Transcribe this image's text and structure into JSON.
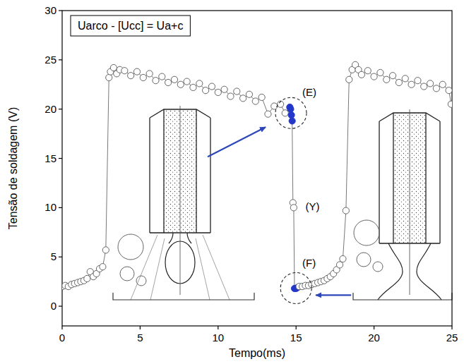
{
  "chart_data": {
    "type": "line",
    "title": "Uarco - [Ucc] = Ua+c",
    "x_label": "Tempo(ms)",
    "y_label": "Tensão de soldagem (V)",
    "xlim": [
      0,
      25
    ],
    "ylim": [
      -2,
      30
    ],
    "xticks": [
      0,
      5,
      10,
      15,
      20,
      25
    ],
    "yticks": [
      0,
      5,
      10,
      15,
      20,
      25,
      30
    ],
    "grid": false,
    "series": [
      {
        "color": "#555555",
        "marker": "circle",
        "line_style": "solid",
        "x": [
          0,
          0.2,
          0.4,
          0.6,
          0.8,
          1.0,
          1.2,
          1.4,
          1.6,
          1.8,
          2.0,
          2.2,
          2.4,
          2.6,
          2.8,
          3.0,
          3.1,
          3.3,
          3.5,
          3.7,
          4.0,
          4.4,
          4.8,
          5.2,
          5.6,
          6.0,
          6.4,
          6.8,
          7.2,
          7.6,
          8.0,
          8.4,
          8.8,
          9.2,
          9.6,
          10.0,
          10.4,
          10.8,
          11.2,
          11.6,
          12.0,
          12.4,
          12.8,
          13.2,
          13.6,
          14.0,
          14.3,
          14.6,
          14.65,
          14.7,
          14.75,
          14.8,
          14.85,
          14.9,
          15.0,
          15.1,
          15.2,
          15.4,
          15.6,
          15.8,
          16.0,
          16.2,
          16.4,
          16.6,
          16.8,
          17.0,
          17.2,
          17.4,
          17.6,
          17.8,
          18.0,
          18.2,
          18.4,
          18.6,
          18.8,
          19.0,
          19.2,
          19.6,
          20.0,
          20.4,
          20.8,
          21.2,
          21.6,
          22.0,
          22.4,
          22.8,
          23.2,
          23.6,
          24.0,
          24.4,
          24.8,
          24.95
        ],
        "values": [
          2.0,
          2.1,
          2.0,
          2.2,
          2.3,
          2.4,
          2.5,
          2.6,
          2.8,
          3.5,
          3.0,
          3.3,
          3.8,
          4.0,
          5.7,
          23.2,
          23.8,
          24.2,
          23.6,
          24.0,
          23.9,
          23.4,
          23.8,
          23.2,
          23.6,
          22.9,
          23.3,
          22.7,
          23.0,
          22.5,
          22.8,
          22.2,
          22.6,
          21.9,
          22.3,
          21.7,
          22.0,
          21.3,
          21.8,
          21.1,
          21.5,
          20.8,
          21.2,
          19.5,
          20.3,
          20.5,
          19.6,
          20.2,
          20.0,
          19.4,
          18.8,
          10.5,
          10.0,
          1.8,
          1.8,
          1.9,
          2.0,
          2.0,
          2.1,
          2.1,
          2.2,
          2.3,
          2.4,
          2.5,
          2.6,
          2.8,
          3.0,
          3.3,
          3.7,
          4.2,
          4.8,
          9.7,
          23.0,
          24.0,
          24.5,
          24.0,
          23.5,
          23.9,
          23.3,
          23.7,
          23.0,
          23.4,
          22.7,
          23.1,
          22.5,
          22.9,
          22.3,
          22.6,
          22.1,
          22.5,
          21.9,
          20.5
        ],
        "colors": [
          "#ffffff",
          "#ffffff",
          "#ffffff",
          "#ffffff",
          "#ffffff",
          "#ffffff",
          "#ffffff",
          "#ffffff",
          "#ffffff",
          "#ffffff",
          "#ffffff",
          "#ffffff",
          "#ffffff",
          "#ffffff",
          "#ffffff",
          "#ffffff",
          "#ffffff",
          "#ffffff",
          "#ffffff",
          "#ffffff",
          "#ffffff",
          "#ffffff",
          "#ffffff",
          "#ffffff",
          "#ffffff",
          "#ffffff",
          "#ffffff",
          "#ffffff",
          "#ffffff",
          "#ffffff",
          "#ffffff",
          "#ffffff",
          "#ffffff",
          "#ffffff",
          "#ffffff",
          "#ffffff",
          "#ffffff",
          "#ffffff",
          "#ffffff",
          "#ffffff",
          "#ffffff",
          "#ffffff",
          "#ffffff",
          "#ffffff",
          "#ffffff",
          "#ffffff",
          "#ffffff",
          "#2338c8",
          "#2338c8",
          "#2338c8",
          "#2338c8",
          "#ffffff",
          "#ffffff",
          "#2338c8",
          "#2338c8",
          "#2338c8",
          "#ffffff",
          "#ffffff",
          "#ffffff",
          "#ffffff",
          "#ffffff",
          "#ffffff",
          "#ffffff",
          "#ffffff",
          "#ffffff",
          "#ffffff",
          "#ffffff",
          "#ffffff",
          "#ffffff",
          "#ffffff",
          "#ffffff",
          "#ffffff",
          "#ffffff",
          "#ffffff",
          "#ffffff",
          "#ffffff",
          "#ffffff",
          "#ffffff",
          "#ffffff",
          "#ffffff",
          "#ffffff",
          "#ffffff",
          "#ffffff",
          "#ffffff",
          "#ffffff",
          "#ffffff",
          "#ffffff",
          "#ffffff",
          "#ffffff",
          "#ffffff",
          "#ffffff",
          "#ffffff"
        ]
      }
    ],
    "annotations": [
      {
        "text": "(E)",
        "x": 15.4,
        "y": 21.6
      },
      {
        "text": "(Y)",
        "x": 15.6,
        "y": 10.0
      },
      {
        "text": "(F)",
        "x": 15.4,
        "y": 4.3
      }
    ]
  }
}
